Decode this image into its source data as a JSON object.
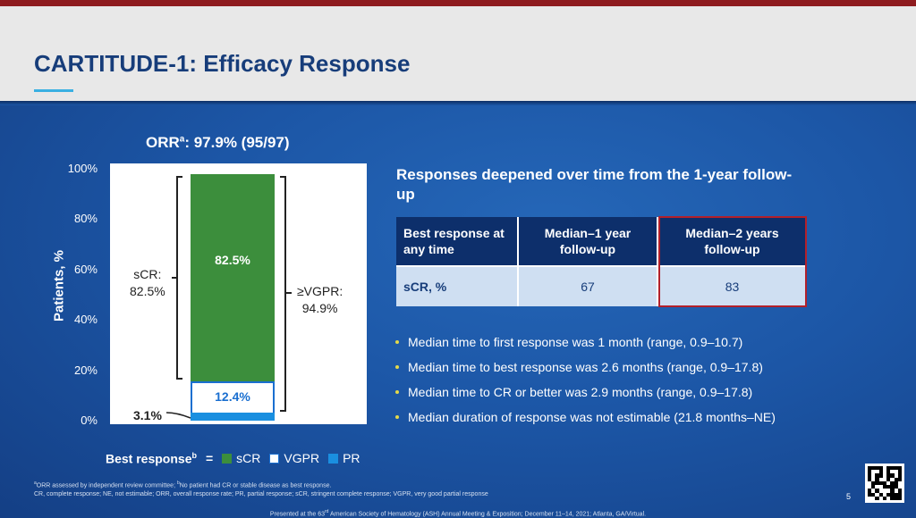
{
  "slide": {
    "title": "CARTITUDE-1: Efficacy Response",
    "page_number": "5",
    "presented_prefix": "Presented at the 63",
    "presented_sup": "rd",
    "presented_suffix": " American Society of Hematology (ASH) Annual Meeting & Exposition; December 11–14, 2021; Atlanta, GA/Virtual.",
    "colors": {
      "header_bg": "#e8e8e8",
      "title": "#173d7a",
      "slide_bg": "#1c56a6",
      "accent_red": "#b3202a",
      "scr_green": "#3c8e3c",
      "pr_blue": "#1a8fe0"
    },
    "icons": [
      "qr-code-icon"
    ]
  },
  "chart": {
    "orr_prefix": "ORR",
    "orr_sup": "a",
    "orr_suffix": ": 97.9% (95/97)",
    "y_axis_label": "Patients, %",
    "ticks": [
      "100%",
      "80%",
      "60%",
      "40%",
      "20%",
      "0%"
    ],
    "scr_bar_label": "82.5%",
    "vgpr_bar_label": "12.4%",
    "pr_label": "3.1%",
    "scr_annotation_line1": "sCR:",
    "scr_annotation_line2": "82.5%",
    "vgpr_annotation_line1": "≥VGPR:",
    "vgpr_annotation_line2": "94.9%",
    "legend_prefix": "Best response",
    "legend_sup": "b",
    "legend_eq": "=",
    "legend": [
      "sCR",
      "VGPR",
      "PR"
    ]
  },
  "chart_data": {
    "type": "bar",
    "stacked": true,
    "categories": [
      ""
    ],
    "series": [
      {
        "name": "PR",
        "values": [
          3.1
        ]
      },
      {
        "name": "VGPR",
        "values": [
          12.4
        ]
      },
      {
        "name": "sCR",
        "values": [
          82.5
        ]
      }
    ],
    "title": "ORRa: 97.9% (95/97)",
    "xlabel": "",
    "ylabel": "Patients, %",
    "ylim": [
      0,
      100
    ],
    "annotations": [
      "sCR: 82.5%",
      "≥VGPR: 94.9%",
      "3.1%"
    ],
    "legend_position": "bottom"
  },
  "right": {
    "heading": "Responses deepened over time from the 1-year follow-up",
    "table": {
      "headers": [
        "Best response at any time",
        "Median–1 year follow-up",
        "Median–2 years follow-up"
      ],
      "rows": [
        {
          "label": "sCR, %",
          "v1": "67",
          "v2": "83"
        }
      ]
    },
    "bullets": [
      "Median time to first response was 1 month (range, 0.9–10.7)",
      "Median time to best response was 2.6 months (range, 0.9–17.8)",
      "Median time to CR or better was 2.9 months (range, 0.9–17.8)",
      "Median duration of response was not estimable (21.8 months–NE)"
    ]
  },
  "footnotes": {
    "line1_sup_a": "a",
    "line1_a": "ORR assessed by independent review committee; ",
    "line1_sup_b": "b",
    "line1_b": "No patient had CR or stable disease as best response.",
    "line2": "CR, complete response; NE, not estimable; ORR, overall response rate; PR, partial response; sCR, stringent complete response; VGPR, very good partial response"
  }
}
